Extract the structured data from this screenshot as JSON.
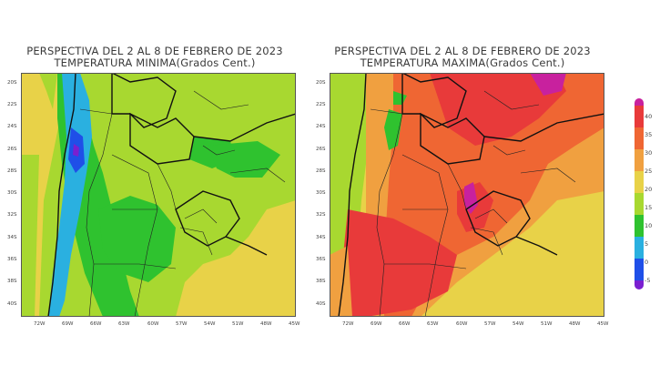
{
  "left_panel": {
    "title_line1": "PERSPECTIVA DEL 2 AL 8 DE FEBRERO DE 2023",
    "title_line2": "TEMPERATURA MINIMA(Grados Cent.)"
  },
  "right_panel": {
    "title_line1": "PERSPECTIVA DEL 2 AL 8 DE FEBRERO DE 2023",
    "title_line2": "TEMPERATURA MAXIMA(Grados Cent.)"
  },
  "lat_labels": [
    "20S",
    "22S",
    "24S",
    "26S",
    "28S",
    "30S",
    "32S",
    "34S",
    "36S",
    "38S",
    "40S"
  ],
  "lon_labels": [
    "72W",
    "69W",
    "66W",
    "63W",
    "60W",
    "57W",
    "54W",
    "51W",
    "48W",
    "45W"
  ],
  "colorbar": {
    "labels": [
      "40",
      "35",
      "30",
      "25",
      "20",
      "15",
      "10",
      "5",
      "0",
      "-5"
    ],
    "colors": [
      "#c8219e",
      "#e83a3a",
      "#ef6633",
      "#f0a040",
      "#e8d248",
      "#a8d830",
      "#2fc22f",
      "#2ab0e0",
      "#1f4fe8",
      "#7a1fd0"
    ]
  }
}
